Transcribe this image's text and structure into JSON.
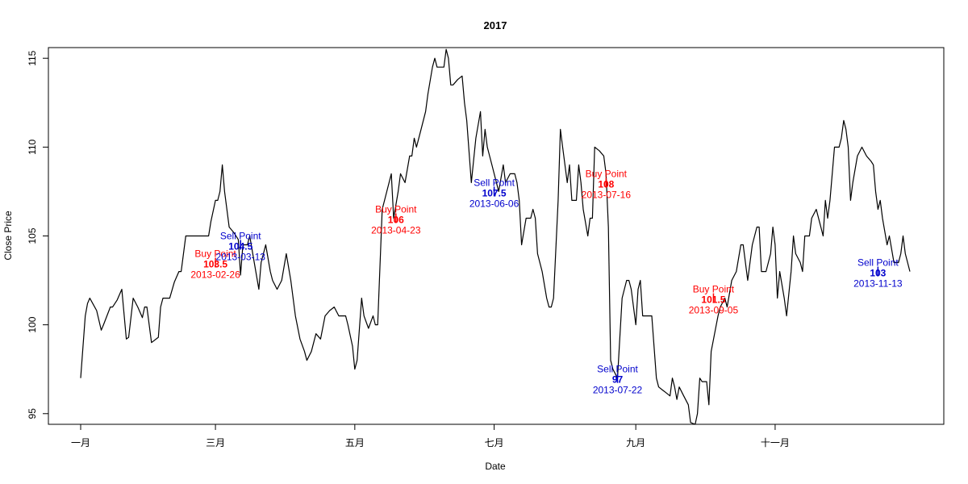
{
  "chart_data": {
    "type": "line",
    "title": "2017",
    "xlabel": "Date",
    "ylabel": "Close Price",
    "xlim": [
      "2013-01-01",
      "2013-12-30"
    ],
    "ylim": [
      94.4,
      115.6
    ],
    "x_ticks": [
      {
        "date": "2013-01-01",
        "label": "一月"
      },
      {
        "date": "2013-03-01",
        "label": "三月"
      },
      {
        "date": "2013-05-01",
        "label": "五月"
      },
      {
        "date": "2013-07-01",
        "label": "七月"
      },
      {
        "date": "2013-09-01",
        "label": "九月"
      },
      {
        "date": "2013-11-01",
        "label": "十一月"
      }
    ],
    "y_ticks": [
      95,
      100,
      105,
      110,
      115
    ],
    "grid": false,
    "legend": "none",
    "series": [
      {
        "color": "#000000",
        "points": [
          [
            "2013-01-01",
            97.0
          ],
          [
            "2013-01-03",
            100.5
          ],
          [
            "2013-01-04",
            101.2
          ],
          [
            "2013-01-05",
            101.5
          ],
          [
            "2013-01-08",
            100.8
          ],
          [
            "2013-01-10",
            99.7
          ],
          [
            "2013-01-11",
            100.0
          ],
          [
            "2013-01-14",
            101.0
          ],
          [
            "2013-01-15",
            101.0
          ],
          [
            "2013-01-17",
            101.4
          ],
          [
            "2013-01-19",
            102.0
          ],
          [
            "2013-01-21",
            99.2
          ],
          [
            "2013-01-22",
            99.3
          ],
          [
            "2013-01-24",
            101.5
          ],
          [
            "2013-01-26",
            101.0
          ],
          [
            "2013-01-28",
            100.4
          ],
          [
            "2013-01-29",
            101.0
          ],
          [
            "2013-01-30",
            101.0
          ],
          [
            "2013-02-01",
            99.0
          ],
          [
            "2013-02-04",
            99.3
          ],
          [
            "2013-02-05",
            101.0
          ],
          [
            "2013-02-06",
            101.5
          ],
          [
            "2013-02-09",
            101.5
          ],
          [
            "2013-02-11",
            102.4
          ],
          [
            "2013-02-13",
            103.0
          ],
          [
            "2013-02-14",
            103.0
          ],
          [
            "2013-02-16",
            105.0
          ],
          [
            "2013-02-18",
            105.0
          ],
          [
            "2013-02-21",
            105.0
          ],
          [
            "2013-02-24",
            105.0
          ],
          [
            "2013-02-26",
            105.0
          ],
          [
            "2013-02-27",
            105.8
          ],
          [
            "2013-03-01",
            107.0
          ],
          [
            "2013-03-02",
            107.0
          ],
          [
            "2013-03-03",
            107.5
          ],
          [
            "2013-03-04",
            109.0
          ],
          [
            "2013-03-05",
            107.5
          ],
          [
            "2013-03-07",
            105.5
          ],
          [
            "2013-03-09",
            105.2
          ],
          [
            "2013-03-11",
            104.8
          ],
          [
            "2013-03-12",
            102.8
          ],
          [
            "2013-03-13",
            104.5
          ],
          [
            "2013-03-15",
            104.5
          ],
          [
            "2013-03-16",
            105.0
          ],
          [
            "2013-03-18",
            103.5
          ],
          [
            "2013-03-20",
            102.0
          ],
          [
            "2013-03-21",
            103.5
          ],
          [
            "2013-03-23",
            104.5
          ],
          [
            "2013-03-25",
            103.0
          ],
          [
            "2013-03-26",
            102.5
          ],
          [
            "2013-03-28",
            102.0
          ],
          [
            "2013-03-30",
            102.5
          ],
          [
            "2013-04-01",
            104.0
          ],
          [
            "2013-04-03",
            102.5
          ],
          [
            "2013-04-05",
            100.5
          ],
          [
            "2013-04-07",
            99.2
          ],
          [
            "2013-04-09",
            98.5
          ],
          [
            "2013-04-10",
            98.0
          ],
          [
            "2013-04-12",
            98.5
          ],
          [
            "2013-04-14",
            99.5
          ],
          [
            "2013-04-16",
            99.2
          ],
          [
            "2013-04-18",
            100.5
          ],
          [
            "2013-04-20",
            100.8
          ],
          [
            "2013-04-22",
            101.0
          ],
          [
            "2013-04-24",
            100.5
          ],
          [
            "2013-04-26",
            100.5
          ],
          [
            "2013-04-27",
            100.5
          ],
          [
            "2013-04-28",
            100.0
          ],
          [
            "2013-04-30",
            98.8
          ],
          [
            "2013-05-01",
            97.5
          ],
          [
            "2013-05-02",
            98.0
          ],
          [
            "2013-05-04",
            101.5
          ],
          [
            "2013-05-05",
            100.5
          ],
          [
            "2013-05-07",
            99.8
          ],
          [
            "2013-05-09",
            100.5
          ],
          [
            "2013-05-10",
            100.0
          ],
          [
            "2013-05-11",
            100.0
          ],
          [
            "2013-05-13",
            106.5
          ],
          [
            "2013-05-14",
            107.0
          ],
          [
            "2013-05-16",
            108.0
          ],
          [
            "2013-05-17",
            108.5
          ],
          [
            "2013-05-18",
            106.0
          ],
          [
            "2013-05-20",
            107.5
          ],
          [
            "2013-05-21",
            108.5
          ],
          [
            "2013-05-23",
            108.0
          ],
          [
            "2013-05-25",
            109.5
          ],
          [
            "2013-05-26",
            109.5
          ],
          [
            "2013-05-27",
            110.5
          ],
          [
            "2013-05-28",
            110.0
          ],
          [
            "2013-05-30",
            111.0
          ],
          [
            "2013-06-01",
            112.0
          ],
          [
            "2013-06-02",
            113.0
          ],
          [
            "2013-06-04",
            114.5
          ],
          [
            "2013-06-05",
            115.0
          ],
          [
            "2013-06-06",
            114.5
          ],
          [
            "2013-06-08",
            114.5
          ],
          [
            "2013-06-09",
            114.5
          ],
          [
            "2013-06-10",
            115.5
          ],
          [
            "2013-06-11",
            115.0
          ],
          [
            "2013-06-12",
            113.5
          ],
          [
            "2013-06-13",
            113.5
          ],
          [
            "2013-06-15",
            113.8
          ],
          [
            "2013-06-17",
            114.0
          ],
          [
            "2013-06-18",
            112.5
          ],
          [
            "2013-06-19",
            111.5
          ],
          [
            "2013-06-21",
            108.0
          ],
          [
            "2013-06-23",
            110.5
          ],
          [
            "2013-06-25",
            112.0
          ],
          [
            "2013-06-26",
            109.5
          ],
          [
            "2013-06-27",
            111.0
          ],
          [
            "2013-06-28",
            110.0
          ],
          [
            "2013-06-30",
            109.0
          ],
          [
            "2013-07-01",
            108.5
          ],
          [
            "2013-07-03",
            107.5
          ],
          [
            "2013-07-05",
            109.0
          ],
          [
            "2013-07-06",
            108.0
          ],
          [
            "2013-07-08",
            108.5
          ],
          [
            "2013-07-10",
            108.5
          ],
          [
            "2013-07-11",
            108.0
          ],
          [
            "2013-07-12",
            107.0
          ],
          [
            "2013-07-13",
            104.5
          ],
          [
            "2013-07-15",
            106.0
          ],
          [
            "2013-07-17",
            106.0
          ],
          [
            "2013-07-18",
            106.5
          ],
          [
            "2013-07-19",
            106.0
          ],
          [
            "2013-07-20",
            104.0
          ],
          [
            "2013-07-22",
            103.0
          ],
          [
            "2013-07-24",
            101.5
          ],
          [
            "2013-07-25",
            101.0
          ],
          [
            "2013-07-26",
            101.0
          ],
          [
            "2013-07-27",
            101.5
          ],
          [
            "2013-07-29",
            107.0
          ],
          [
            "2013-07-30",
            111.0
          ],
          [
            "2013-07-31",
            110.0
          ],
          [
            "2013-08-02",
            108.0
          ],
          [
            "2013-08-03",
            109.0
          ],
          [
            "2013-08-04",
            107.0
          ],
          [
            "2013-08-06",
            107.0
          ],
          [
            "2013-08-07",
            109.0
          ],
          [
            "2013-08-08",
            108.0
          ],
          [
            "2013-08-09",
            106.5
          ],
          [
            "2013-08-11",
            105.0
          ],
          [
            "2013-08-12",
            106.0
          ],
          [
            "2013-08-13",
            106.0
          ],
          [
            "2013-08-14",
            110.0
          ],
          [
            "2013-08-16",
            109.8
          ],
          [
            "2013-08-18",
            109.5
          ],
          [
            "2013-08-19",
            108.5
          ],
          [
            "2013-08-20",
            105.5
          ],
          [
            "2013-08-21",
            98.0
          ],
          [
            "2013-08-22",
            97.5
          ],
          [
            "2013-08-24",
            97.0
          ],
          [
            "2013-08-26",
            101.5
          ],
          [
            "2013-08-28",
            102.5
          ],
          [
            "2013-08-29",
            102.5
          ],
          [
            "2013-08-30",
            102.0
          ],
          [
            "2013-09-01",
            100.0
          ],
          [
            "2013-09-02",
            102.0
          ],
          [
            "2013-09-03",
            102.5
          ],
          [
            "2013-09-04",
            100.5
          ],
          [
            "2013-09-05",
            100.5
          ],
          [
            "2013-09-07",
            100.5
          ],
          [
            "2013-09-08",
            100.5
          ],
          [
            "2013-09-10",
            97.0
          ],
          [
            "2013-09-11",
            96.5
          ],
          [
            "2013-09-13",
            96.3
          ],
          [
            "2013-09-14",
            96.2
          ],
          [
            "2013-09-16",
            96.0
          ],
          [
            "2013-09-17",
            97.0
          ],
          [
            "2013-09-18",
            96.5
          ],
          [
            "2013-09-19",
            95.8
          ],
          [
            "2013-09-20",
            96.5
          ],
          [
            "2013-09-22",
            96.0
          ],
          [
            "2013-09-24",
            95.5
          ],
          [
            "2013-09-25",
            94.5
          ],
          [
            "2013-09-27",
            94.4
          ],
          [
            "2013-09-28",
            95.0
          ],
          [
            "2013-09-29",
            97.0
          ],
          [
            "2013-09-30",
            96.8
          ],
          [
            "2013-10-02",
            96.8
          ],
          [
            "2013-10-03",
            95.5
          ],
          [
            "2013-10-04",
            98.5
          ],
          [
            "2013-10-07",
            100.5
          ],
          [
            "2013-10-08",
            101.0
          ],
          [
            "2013-10-10",
            101.5
          ],
          [
            "2013-10-11",
            101.0
          ],
          [
            "2013-10-13",
            102.5
          ],
          [
            "2013-10-15",
            103.0
          ],
          [
            "2013-10-17",
            104.5
          ],
          [
            "2013-10-18",
            104.5
          ],
          [
            "2013-10-20",
            102.5
          ],
          [
            "2013-10-22",
            104.5
          ],
          [
            "2013-10-24",
            105.5
          ],
          [
            "2013-10-25",
            105.5
          ],
          [
            "2013-10-26",
            103.0
          ],
          [
            "2013-10-28",
            103.0
          ],
          [
            "2013-10-30",
            104.0
          ],
          [
            "2013-10-31",
            105.5
          ],
          [
            "2013-11-01",
            104.5
          ],
          [
            "2013-11-02",
            101.5
          ],
          [
            "2013-11-03",
            103.0
          ],
          [
            "2013-11-05",
            101.5
          ],
          [
            "2013-11-06",
            100.5
          ],
          [
            "2013-11-08",
            103.0
          ],
          [
            "2013-11-09",
            105.0
          ],
          [
            "2013-11-10",
            104.0
          ],
          [
            "2013-11-12",
            103.5
          ],
          [
            "2013-11-13",
            103.0
          ],
          [
            "2013-11-14",
            105.0
          ],
          [
            "2013-11-16",
            105.0
          ],
          [
            "2013-11-17",
            106.0
          ],
          [
            "2013-11-19",
            106.5
          ],
          [
            "2013-11-21",
            105.5
          ],
          [
            "2013-11-22",
            105.0
          ],
          [
            "2013-11-23",
            107.0
          ],
          [
            "2013-11-24",
            106.0
          ],
          [
            "2013-11-25",
            107.0
          ],
          [
            "2013-11-27",
            110.0
          ],
          [
            "2013-11-29",
            110.0
          ],
          [
            "2013-11-30",
            110.5
          ],
          [
            "2013-12-01",
            111.5
          ],
          [
            "2013-12-02",
            111.0
          ],
          [
            "2013-12-03",
            110.0
          ],
          [
            "2013-12-04",
            107.0
          ],
          [
            "2013-12-05",
            108.0
          ],
          [
            "2013-12-07",
            109.5
          ],
          [
            "2013-12-09",
            110.0
          ],
          [
            "2013-12-11",
            109.5
          ],
          [
            "2013-12-13",
            109.2
          ],
          [
            "2013-12-14",
            109.0
          ],
          [
            "2013-12-15",
            107.5
          ],
          [
            "2013-12-16",
            106.5
          ],
          [
            "2013-12-17",
            107.0
          ],
          [
            "2013-12-18",
            106.0
          ],
          [
            "2013-12-20",
            104.5
          ],
          [
            "2013-12-21",
            105.0
          ],
          [
            "2013-12-23",
            103.5
          ],
          [
            "2013-12-25",
            103.5
          ],
          [
            "2013-12-26",
            104.0
          ],
          [
            "2013-12-27",
            105.0
          ],
          [
            "2013-12-28",
            104.0
          ],
          [
            "2013-12-30",
            103.0
          ]
        ]
      }
    ],
    "annotations": [
      {
        "type": "Buy Point",
        "price": "103.5",
        "date": "2013-02-26",
        "x": "2013-03-01",
        "y": 103.5,
        "color": "#ff0000"
      },
      {
        "type": "Sell Point",
        "price": "104.5",
        "date": "2013-03-13",
        "x": "2013-03-12",
        "y": 104.5,
        "color": "#0000cc"
      },
      {
        "type": "Buy Point",
        "price": "106",
        "date": "2013-04-23",
        "x": "2013-05-19",
        "y": 106.0,
        "color": "#ff0000"
      },
      {
        "type": "Sell Point",
        "price": "107.5",
        "date": "2013-06-06",
        "x": "2013-07-01",
        "y": 107.5,
        "color": "#0000cc"
      },
      {
        "type": "Buy Point",
        "price": "108",
        "date": "2013-07-16",
        "x": "2013-08-19",
        "y": 108.0,
        "color": "#ff0000"
      },
      {
        "type": "Sell Point",
        "price": "97",
        "date": "2013-07-22",
        "x": "2013-08-24",
        "y": 97.0,
        "color": "#0000cc"
      },
      {
        "type": "Buy Point",
        "price": "101.5",
        "date": "2013-09-05",
        "x": "2013-10-05",
        "y": 101.5,
        "color": "#ff0000"
      },
      {
        "type": "Sell Point",
        "price": "103",
        "date": "2013-11-13",
        "x": "2013-12-16",
        "y": 103.0,
        "color": "#0000cc"
      }
    ]
  }
}
